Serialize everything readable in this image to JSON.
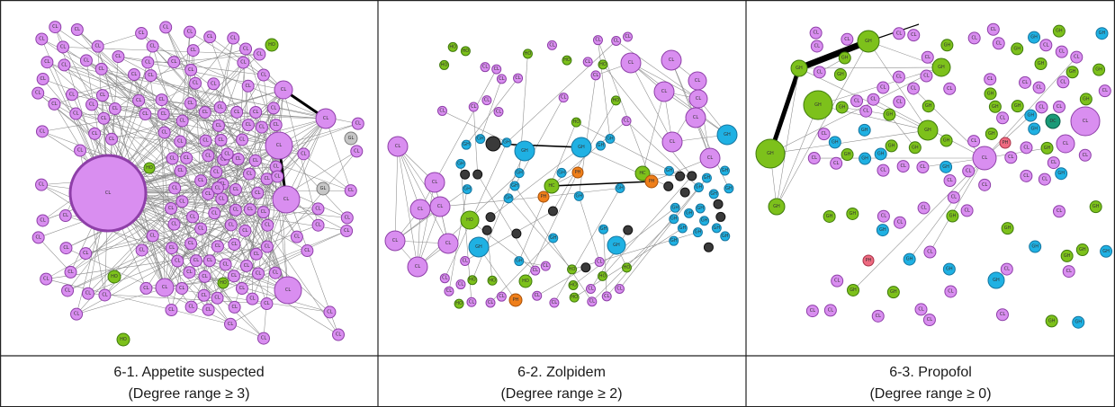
{
  "panels": [
    {
      "title": "6-1. Appetite suspected",
      "subtitle": "(Degree range ≥ 3)"
    },
    {
      "title": "6-2. Zolpidem",
      "subtitle": "(Degree range ≥ 2)"
    },
    {
      "title": "6-3. Propofol",
      "subtitle": "(Degree range ≥ 0)"
    }
  ],
  "node_types": {
    "CL": {
      "color": "#d98ef0"
    },
    "GH": {
      "color": "#7dc11b"
    },
    "HO": {
      "color": "#7dc11b"
    },
    "HS": {
      "color": "#1fb1e3"
    },
    "GL": {
      "color": "#c6c6c6"
    },
    "HC": {
      "color": "#7dc11b"
    },
    "PH": {
      "color": "#ef7f1a"
    },
    "DC": {
      "color": "#1a9a77"
    },
    "DK": {
      "color": "#3a3a3a"
    },
    "PK": {
      "color": "#ee6a80"
    }
  }
}
